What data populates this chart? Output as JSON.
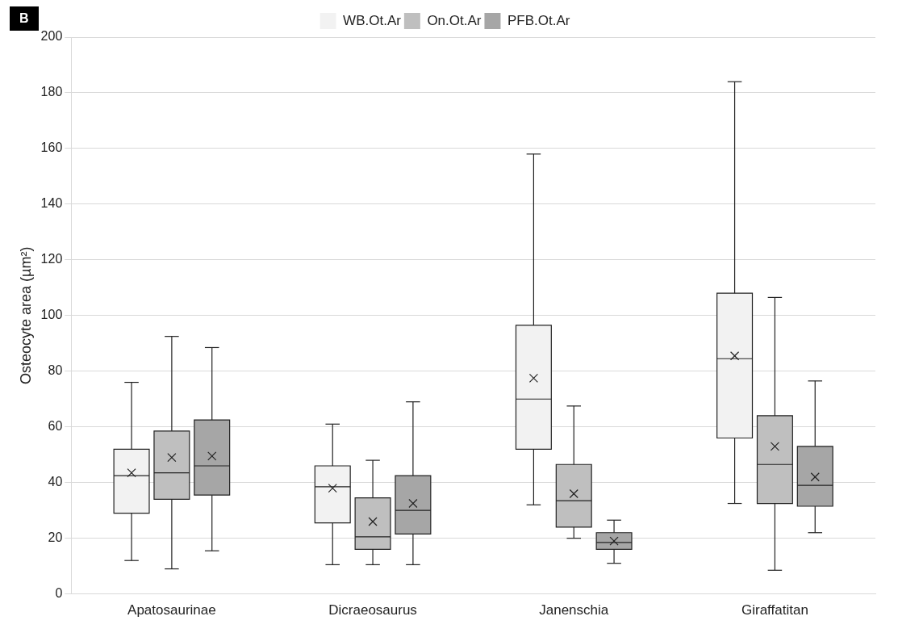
{
  "chart_data": {
    "type": "box",
    "annotations": [
      "B"
    ],
    "ylabel": "Osteocyte area (µm²)",
    "categories": [
      "Apatosaurinae",
      "Dicraeosaurus",
      "Janenschia",
      "Giraffatitan"
    ],
    "series": [
      {
        "name": "WB.Ot.Ar",
        "color": "#f2f2f2",
        "boxes": [
          {
            "low": 12,
            "q1": 29,
            "median": 42.5,
            "q3": 52,
            "high": 76,
            "mean": 43.5
          },
          {
            "low": 10.5,
            "q1": 25.5,
            "median": 38.5,
            "q3": 46,
            "high": 61,
            "mean": 38
          },
          {
            "low": 32,
            "q1": 52,
            "median": 70,
            "q3": 96.5,
            "high": 158,
            "mean": 77.5
          },
          {
            "low": 32.5,
            "q1": 56,
            "median": 84.5,
            "q3": 108,
            "high": 184,
            "mean": 85.5
          }
        ]
      },
      {
        "name": "On.Ot.Ar",
        "color": "#bfbfbf",
        "boxes": [
          {
            "low": 9,
            "q1": 34,
            "median": 43.5,
            "q3": 58.5,
            "high": 92.5,
            "mean": 49
          },
          {
            "low": 10.5,
            "q1": 16,
            "median": 20.5,
            "q3": 34.5,
            "high": 48,
            "mean": 26
          },
          {
            "low": 20,
            "q1": 24,
            "median": 33.5,
            "q3": 46.5,
            "high": 67.5,
            "mean": 36
          },
          {
            "low": 8.5,
            "q1": 32.5,
            "median": 46.5,
            "q3": 64,
            "high": 106.5,
            "mean": 53
          }
        ]
      },
      {
        "name": "PFB.Ot.Ar",
        "color": "#a6a6a6",
        "boxes": [
          {
            "low": 15.5,
            "q1": 35.5,
            "median": 46,
            "q3": 62.5,
            "high": 88.5,
            "mean": 49.5
          },
          {
            "low": 10.5,
            "q1": 21.5,
            "median": 30,
            "q3": 42.5,
            "high": 69,
            "mean": 32.5
          },
          {
            "low": 11,
            "q1": 16,
            "median": 18.5,
            "q3": 22,
            "high": 26.5,
            "mean": 19
          },
          {
            "low": 22,
            "q1": 31.5,
            "median": 39,
            "q3": 53,
            "high": 76.5,
            "mean": 42
          }
        ]
      }
    ],
    "ylim": [
      0,
      200
    ],
    "yticks": [
      0,
      20,
      40,
      60,
      80,
      100,
      120,
      140,
      160,
      180,
      200
    ],
    "grid": "y",
    "legend": "top"
  }
}
